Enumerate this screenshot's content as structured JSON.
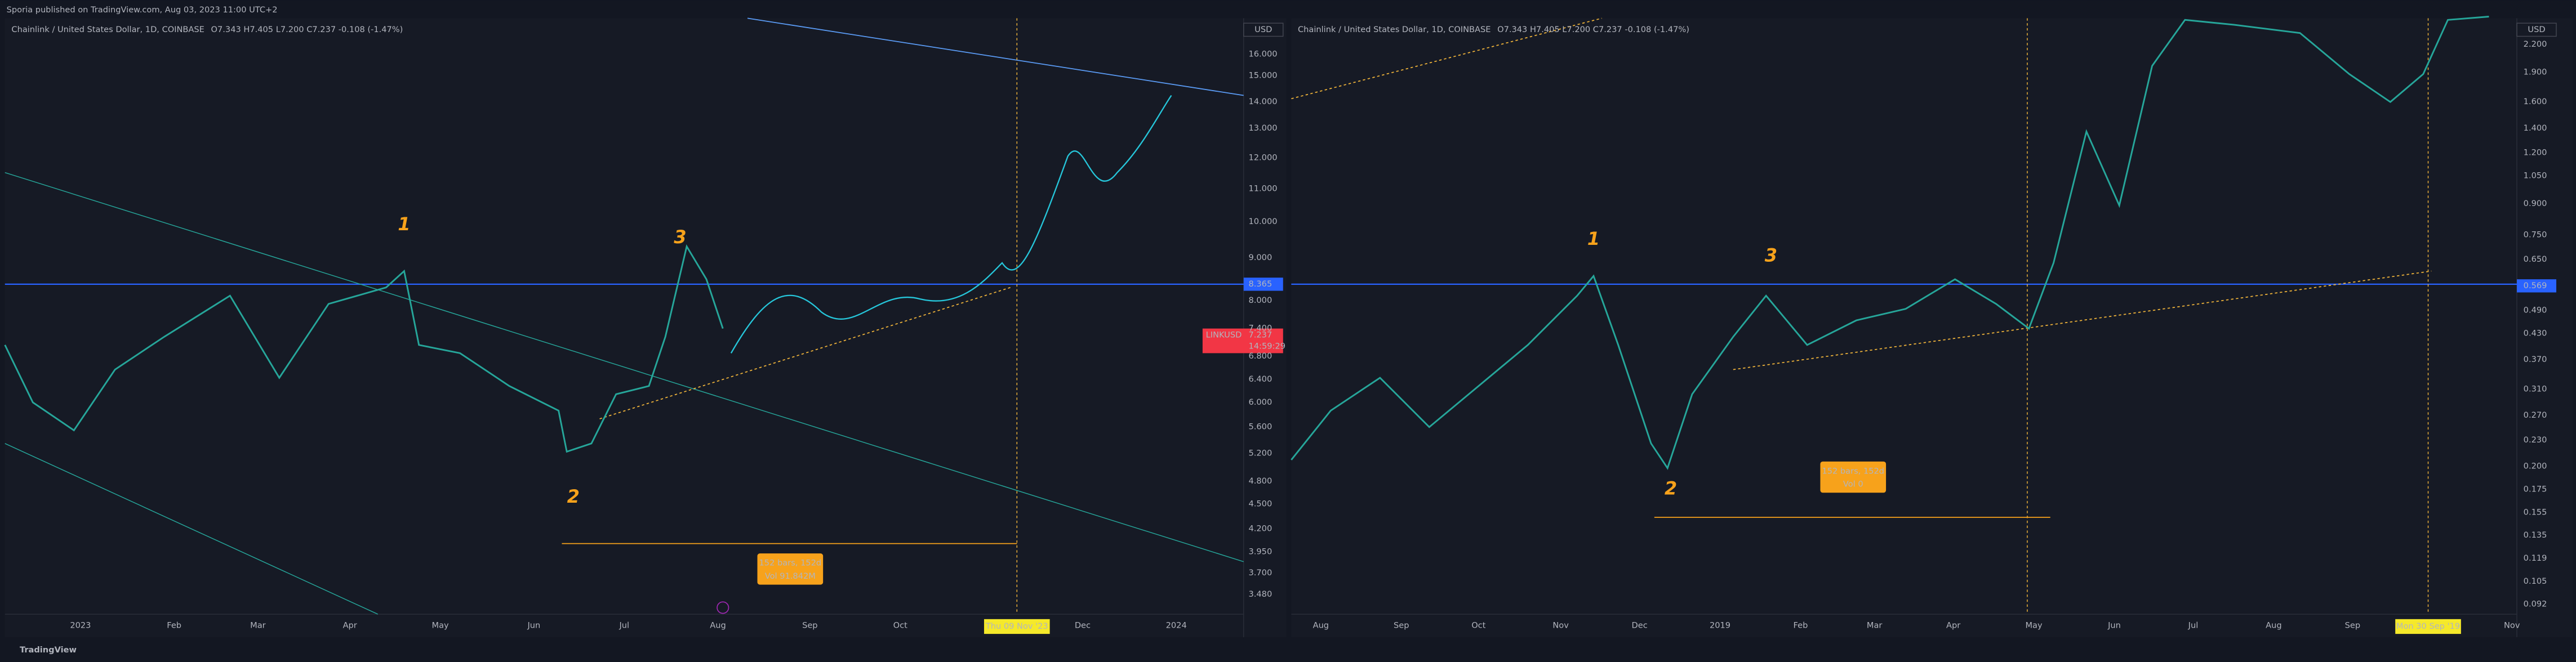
{
  "header": {
    "publisher": "Sporia published on TradingView.com, Aug 03, 2023 11:00 UTC+2"
  },
  "panels": [
    {
      "symbol": "Chainlink / United States Dollar, 1D, COINBASE",
      "ohlc": "O7.343 H7.405 L7.200 C7.237 -0.108 (-1.47%)",
      "currency": "USD",
      "price_labels": [
        "16.000",
        "15.000",
        "14.000",
        "13.000",
        "12.000",
        "11.000",
        "10.000",
        "9.000",
        "8.000",
        "7.400",
        "6.800",
        "6.400",
        "6.000",
        "5.600",
        "5.200",
        "4.800",
        "4.500",
        "4.200",
        "3.950",
        "3.700",
        "3.480"
      ],
      "level_badge": "8.365",
      "last_badge": {
        "symbol": "LINKUSD",
        "price": "7.237",
        "countdown": "14:59:29"
      },
      "time_labels": [
        "2023",
        "Feb",
        "Mar",
        "Apr",
        "May",
        "Jun",
        "Jul",
        "Aug",
        "Sep",
        "Oct",
        "Dec",
        "2024"
      ],
      "cursor_date": "Thu 09 Nov '23",
      "waves": [
        "1",
        "3",
        "2"
      ],
      "measure": {
        "bars": "152 bars, 152d",
        "vol": "Vol 91.842M"
      }
    },
    {
      "symbol": "Chainlink / United States Dollar, 1D, COINBASE",
      "ohlc": "O7.343 H7.405 L7.200 C7.237 -0.108 (-1.47%)",
      "currency": "USD",
      "price_labels": [
        "2.200",
        "1.900",
        "1.600",
        "1.400",
        "1.200",
        "1.050",
        "0.900",
        "0.750",
        "0.650",
        "0.490",
        "0.430",
        "0.370",
        "0.310",
        "0.270",
        "0.230",
        "0.200",
        "0.175",
        "0.155",
        "0.135",
        "0.119",
        "0.105",
        "0.092"
      ],
      "level_badge": "0.569",
      "time_labels": [
        "Aug",
        "Sep",
        "Oct",
        "Nov",
        "Dec",
        "2019",
        "Feb",
        "Mar",
        "Apr",
        "May",
        "Jun",
        "Jul",
        "Aug",
        "Sep",
        "Nov"
      ],
      "cursor_date": "Mon 30 Sep '19",
      "waves": [
        "1",
        "3",
        "2"
      ],
      "measure": {
        "bars": "152 bars, 152d",
        "vol": "Vol 0"
      }
    }
  ],
  "footer": {
    "brand": "TradingView"
  }
}
